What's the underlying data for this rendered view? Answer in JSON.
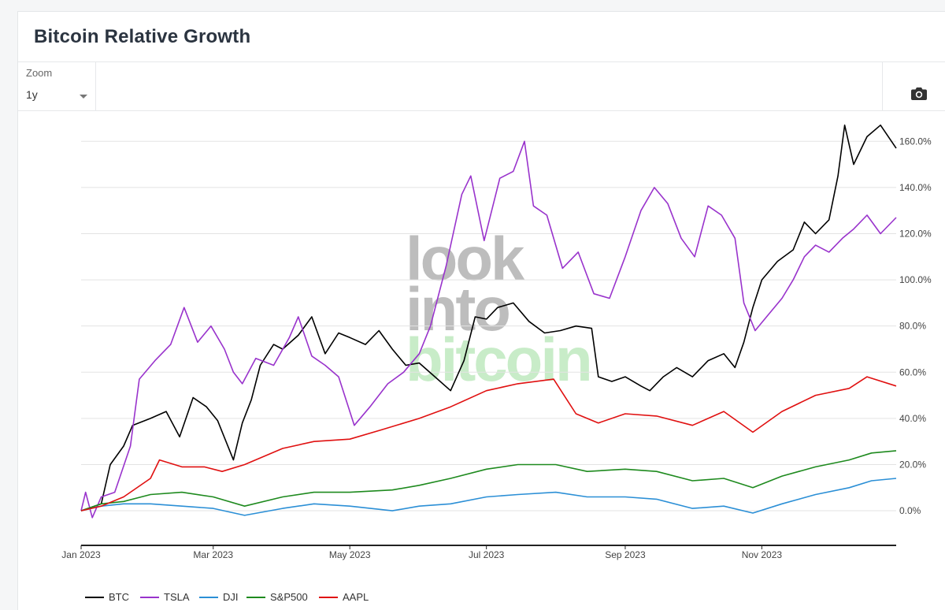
{
  "page": {
    "title": "Bitcoin Relative Growth"
  },
  "toolbar": {
    "zoom_label": "Zoom",
    "zoom_value": "1y",
    "camera_icon": "camera-icon"
  },
  "watermark": {
    "line1": "look",
    "line2": "into",
    "line3": "bitcoin",
    "gray": "#bdbdbd",
    "green": "#c8ecc8"
  },
  "chart_data": {
    "type": "line",
    "title": "Bitcoin Relative Growth",
    "xlabel": "",
    "ylabel": "",
    "ylim": [
      -15,
      170
    ],
    "y_ticks": [
      0,
      20,
      40,
      60,
      80,
      100,
      120,
      140,
      160
    ],
    "y_tick_labels": [
      "0.0%",
      "20.0%",
      "40.0%",
      "60.0%",
      "80.0%",
      "100.0%",
      "120.0%",
      "140.0%",
      "160.0%"
    ],
    "y_axis_side": "right",
    "x_range": [
      "2023-01-01",
      "2023-12-31"
    ],
    "x_ticks": [
      "2023-01-01",
      "2023-03-01",
      "2023-05-01",
      "2023-07-01",
      "2023-09-01",
      "2023-11-01"
    ],
    "x_tick_labels": [
      "Jan 2023",
      "Mar 2023",
      "May 2023",
      "Jul 2023",
      "Sep 2023",
      "Nov 2023"
    ],
    "grid": true,
    "legend_position": "bottom-left",
    "series": [
      {
        "name": "BTC",
        "color": "#000000",
        "points": [
          [
            "2023-01-01",
            0
          ],
          [
            "2023-01-10",
            3
          ],
          [
            "2023-01-14",
            20
          ],
          [
            "2023-01-20",
            28
          ],
          [
            "2023-01-24",
            37
          ],
          [
            "2023-02-01",
            40
          ],
          [
            "2023-02-08",
            43
          ],
          [
            "2023-02-14",
            32
          ],
          [
            "2023-02-20",
            49
          ],
          [
            "2023-02-26",
            45
          ],
          [
            "2023-03-03",
            39
          ],
          [
            "2023-03-10",
            22
          ],
          [
            "2023-03-14",
            38
          ],
          [
            "2023-03-18",
            48
          ],
          [
            "2023-03-22",
            63
          ],
          [
            "2023-03-28",
            72
          ],
          [
            "2023-04-01",
            70
          ],
          [
            "2023-04-08",
            76
          ],
          [
            "2023-04-14",
            84
          ],
          [
            "2023-04-20",
            68
          ],
          [
            "2023-04-26",
            77
          ],
          [
            "2023-05-01",
            75
          ],
          [
            "2023-05-08",
            72
          ],
          [
            "2023-05-14",
            78
          ],
          [
            "2023-05-20",
            70
          ],
          [
            "2023-05-26",
            63
          ],
          [
            "2023-06-01",
            64
          ],
          [
            "2023-06-08",
            58
          ],
          [
            "2023-06-15",
            52
          ],
          [
            "2023-06-21",
            65
          ],
          [
            "2023-06-26",
            84
          ],
          [
            "2023-07-01",
            83
          ],
          [
            "2023-07-06",
            88
          ],
          [
            "2023-07-13",
            90
          ],
          [
            "2023-07-20",
            82
          ],
          [
            "2023-07-27",
            77
          ],
          [
            "2023-08-03",
            78
          ],
          [
            "2023-08-10",
            80
          ],
          [
            "2023-08-17",
            79
          ],
          [
            "2023-08-20",
            58
          ],
          [
            "2023-08-26",
            56
          ],
          [
            "2023-09-01",
            58
          ],
          [
            "2023-09-08",
            54
          ],
          [
            "2023-09-12",
            52
          ],
          [
            "2023-09-18",
            58
          ],
          [
            "2023-09-24",
            62
          ],
          [
            "2023-10-01",
            58
          ],
          [
            "2023-10-08",
            65
          ],
          [
            "2023-10-15",
            68
          ],
          [
            "2023-10-20",
            62
          ],
          [
            "2023-10-24",
            73
          ],
          [
            "2023-10-28",
            88
          ],
          [
            "2023-11-01",
            100
          ],
          [
            "2023-11-08",
            108
          ],
          [
            "2023-11-15",
            113
          ],
          [
            "2023-11-20",
            125
          ],
          [
            "2023-11-25",
            120
          ],
          [
            "2023-12-01",
            126
          ],
          [
            "2023-12-05",
            145
          ],
          [
            "2023-12-08",
            167
          ],
          [
            "2023-12-12",
            150
          ],
          [
            "2023-12-18",
            162
          ],
          [
            "2023-12-24",
            167
          ],
          [
            "2023-12-31",
            157
          ]
        ]
      },
      {
        "name": "TSLA",
        "color": "#9933cc",
        "points": [
          [
            "2023-01-01",
            0
          ],
          [
            "2023-01-03",
            8
          ],
          [
            "2023-01-06",
            -3
          ],
          [
            "2023-01-10",
            6
          ],
          [
            "2023-01-16",
            8
          ],
          [
            "2023-01-23",
            28
          ],
          [
            "2023-01-27",
            57
          ],
          [
            "2023-02-03",
            65
          ],
          [
            "2023-02-10",
            72
          ],
          [
            "2023-02-16",
            88
          ],
          [
            "2023-02-22",
            73
          ],
          [
            "2023-02-28",
            80
          ],
          [
            "2023-03-06",
            70
          ],
          [
            "2023-03-10",
            60
          ],
          [
            "2023-03-14",
            55
          ],
          [
            "2023-03-20",
            66
          ],
          [
            "2023-03-28",
            63
          ],
          [
            "2023-04-04",
            75
          ],
          [
            "2023-04-08",
            84
          ],
          [
            "2023-04-14",
            67
          ],
          [
            "2023-04-20",
            63
          ],
          [
            "2023-04-26",
            58
          ],
          [
            "2023-05-03",
            37
          ],
          [
            "2023-05-10",
            45
          ],
          [
            "2023-05-18",
            55
          ],
          [
            "2023-05-25",
            60
          ],
          [
            "2023-06-01",
            68
          ],
          [
            "2023-06-06",
            80
          ],
          [
            "2023-06-13",
            106
          ],
          [
            "2023-06-20",
            137
          ],
          [
            "2023-06-24",
            145
          ],
          [
            "2023-06-30",
            117
          ],
          [
            "2023-07-07",
            144
          ],
          [
            "2023-07-13",
            147
          ],
          [
            "2023-07-18",
            160
          ],
          [
            "2023-07-22",
            132
          ],
          [
            "2023-07-28",
            128
          ],
          [
            "2023-08-04",
            105
          ],
          [
            "2023-08-11",
            112
          ],
          [
            "2023-08-18",
            94
          ],
          [
            "2023-08-25",
            92
          ],
          [
            "2023-09-01",
            110
          ],
          [
            "2023-09-08",
            130
          ],
          [
            "2023-09-14",
            140
          ],
          [
            "2023-09-20",
            133
          ],
          [
            "2023-09-26",
            118
          ],
          [
            "2023-10-02",
            110
          ],
          [
            "2023-10-08",
            132
          ],
          [
            "2023-10-14",
            128
          ],
          [
            "2023-10-20",
            118
          ],
          [
            "2023-10-24",
            90
          ],
          [
            "2023-10-29",
            78
          ],
          [
            "2023-11-04",
            85
          ],
          [
            "2023-11-10",
            92
          ],
          [
            "2023-11-15",
            100
          ],
          [
            "2023-11-20",
            110
          ],
          [
            "2023-11-25",
            115
          ],
          [
            "2023-12-01",
            112
          ],
          [
            "2023-12-07",
            118
          ],
          [
            "2023-12-12",
            122
          ],
          [
            "2023-12-18",
            128
          ],
          [
            "2023-12-24",
            120
          ],
          [
            "2023-12-31",
            127
          ]
        ]
      },
      {
        "name": "DJI",
        "color": "#2b8fd6",
        "points": [
          [
            "2023-01-01",
            0
          ],
          [
            "2023-01-10",
            2
          ],
          [
            "2023-01-20",
            3
          ],
          [
            "2023-02-01",
            3
          ],
          [
            "2023-02-15",
            2
          ],
          [
            "2023-03-01",
            1
          ],
          [
            "2023-03-15",
            -2
          ],
          [
            "2023-04-01",
            1
          ],
          [
            "2023-04-15",
            3
          ],
          [
            "2023-05-01",
            2
          ],
          [
            "2023-05-20",
            0
          ],
          [
            "2023-06-01",
            2
          ],
          [
            "2023-06-15",
            3
          ],
          [
            "2023-07-01",
            6
          ],
          [
            "2023-07-15",
            7
          ],
          [
            "2023-08-01",
            8
          ],
          [
            "2023-08-15",
            6
          ],
          [
            "2023-09-01",
            6
          ],
          [
            "2023-09-15",
            5
          ],
          [
            "2023-10-01",
            1
          ],
          [
            "2023-10-15",
            2
          ],
          [
            "2023-10-28",
            -1
          ],
          [
            "2023-11-10",
            3
          ],
          [
            "2023-11-25",
            7
          ],
          [
            "2023-12-10",
            10
          ],
          [
            "2023-12-20",
            13
          ],
          [
            "2023-12-31",
            14
          ]
        ]
      },
      {
        "name": "S&P500",
        "color": "#1e8a1e",
        "points": [
          [
            "2023-01-01",
            0
          ],
          [
            "2023-01-10",
            3
          ],
          [
            "2023-01-20",
            4
          ],
          [
            "2023-02-01",
            7
          ],
          [
            "2023-02-15",
            8
          ],
          [
            "2023-03-01",
            6
          ],
          [
            "2023-03-15",
            2
          ],
          [
            "2023-04-01",
            6
          ],
          [
            "2023-04-15",
            8
          ],
          [
            "2023-05-01",
            8
          ],
          [
            "2023-05-20",
            9
          ],
          [
            "2023-06-01",
            11
          ],
          [
            "2023-06-15",
            14
          ],
          [
            "2023-07-01",
            18
          ],
          [
            "2023-07-15",
            20
          ],
          [
            "2023-08-01",
            20
          ],
          [
            "2023-08-15",
            17
          ],
          [
            "2023-09-01",
            18
          ],
          [
            "2023-09-15",
            17
          ],
          [
            "2023-10-01",
            13
          ],
          [
            "2023-10-15",
            14
          ],
          [
            "2023-10-28",
            10
          ],
          [
            "2023-11-10",
            15
          ],
          [
            "2023-11-25",
            19
          ],
          [
            "2023-12-10",
            22
          ],
          [
            "2023-12-20",
            25
          ],
          [
            "2023-12-31",
            26
          ]
        ]
      },
      {
        "name": "AAPL",
        "color": "#e01010",
        "points": [
          [
            "2023-01-01",
            0
          ],
          [
            "2023-01-10",
            2
          ],
          [
            "2023-01-20",
            6
          ],
          [
            "2023-02-01",
            14
          ],
          [
            "2023-02-05",
            22
          ],
          [
            "2023-02-15",
            19
          ],
          [
            "2023-02-25",
            19
          ],
          [
            "2023-03-05",
            17
          ],
          [
            "2023-03-15",
            20
          ],
          [
            "2023-04-01",
            27
          ],
          [
            "2023-04-15",
            30
          ],
          [
            "2023-05-01",
            31
          ],
          [
            "2023-05-15",
            35
          ],
          [
            "2023-06-01",
            40
          ],
          [
            "2023-06-15",
            45
          ],
          [
            "2023-07-01",
            52
          ],
          [
            "2023-07-15",
            55
          ],
          [
            "2023-07-31",
            57
          ],
          [
            "2023-08-10",
            42
          ],
          [
            "2023-08-20",
            38
          ],
          [
            "2023-09-01",
            42
          ],
          [
            "2023-09-15",
            41
          ],
          [
            "2023-10-01",
            37
          ],
          [
            "2023-10-15",
            43
          ],
          [
            "2023-10-28",
            34
          ],
          [
            "2023-11-10",
            43
          ],
          [
            "2023-11-25",
            50
          ],
          [
            "2023-12-10",
            53
          ],
          [
            "2023-12-18",
            58
          ],
          [
            "2023-12-31",
            54
          ]
        ]
      }
    ]
  }
}
